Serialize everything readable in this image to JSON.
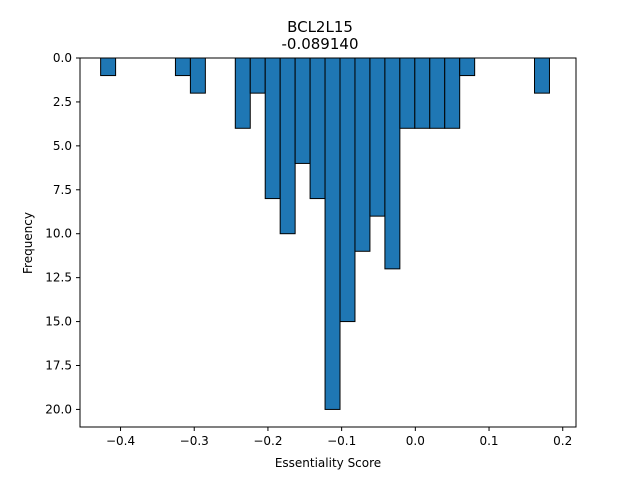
{
  "chart_data": {
    "type": "bar",
    "title": "BCL2L15",
    "subtitle": "-0.089140",
    "xlabel": "Essentiality Score",
    "ylabel": "Frequency",
    "xlim": [
      -0.455,
      0.218
    ],
    "ylim": [
      21.0,
      0.0
    ],
    "y_inverted": true,
    "bar_color": "#1f77b4",
    "edge_color": "#000000",
    "bin_width": 0.0203,
    "bins": [
      {
        "x0": -0.427,
        "x1": -0.4067,
        "count": 1
      },
      {
        "x0": -0.3255,
        "x1": -0.3052,
        "count": 1
      },
      {
        "x0": -0.3052,
        "x1": -0.2849,
        "count": 2
      },
      {
        "x0": -0.2443,
        "x1": -0.224,
        "count": 4
      },
      {
        "x0": -0.224,
        "x1": -0.2037,
        "count": 2
      },
      {
        "x0": -0.2037,
        "x1": -0.1834,
        "count": 8
      },
      {
        "x0": -0.1834,
        "x1": -0.1631,
        "count": 10
      },
      {
        "x0": -0.1631,
        "x1": -0.1428,
        "count": 6
      },
      {
        "x0": -0.1428,
        "x1": -0.1225,
        "count": 8
      },
      {
        "x0": -0.1225,
        "x1": -0.1022,
        "count": 20
      },
      {
        "x0": -0.1022,
        "x1": -0.0819,
        "count": 15
      },
      {
        "x0": -0.0819,
        "x1": -0.0616,
        "count": 11
      },
      {
        "x0": -0.0616,
        "x1": -0.0413,
        "count": 9
      },
      {
        "x0": -0.0413,
        "x1": -0.021,
        "count": 12
      },
      {
        "x0": -0.021,
        "x1": -0.0007,
        "count": 4
      },
      {
        "x0": -0.0007,
        "x1": 0.0196,
        "count": 4
      },
      {
        "x0": 0.0196,
        "x1": 0.0399,
        "count": 4
      },
      {
        "x0": 0.0399,
        "x1": 0.0602,
        "count": 4
      },
      {
        "x0": 0.0602,
        "x1": 0.0805,
        "count": 1
      },
      {
        "x0": 0.1617,
        "x1": 0.182,
        "count": 2
      }
    ],
    "x_ticks": [
      {
        "value": -0.4,
        "label": "−0.4"
      },
      {
        "value": -0.3,
        "label": "−0.3"
      },
      {
        "value": -0.2,
        "label": "−0.2"
      },
      {
        "value": -0.1,
        "label": "−0.1"
      },
      {
        "value": 0.0,
        "label": "0.0"
      },
      {
        "value": 0.1,
        "label": "0.1"
      },
      {
        "value": 0.2,
        "label": "0.2"
      }
    ],
    "y_ticks": [
      {
        "value": 0.0,
        "label": "0.0"
      },
      {
        "value": 2.5,
        "label": "2.5"
      },
      {
        "value": 5.0,
        "label": "5.0"
      },
      {
        "value": 7.5,
        "label": "7.5"
      },
      {
        "value": 10.0,
        "label": "10.0"
      },
      {
        "value": 12.5,
        "label": "12.5"
      },
      {
        "value": 15.0,
        "label": "15.0"
      },
      {
        "value": 17.5,
        "label": "17.5"
      },
      {
        "value": 20.0,
        "label": "20.0"
      }
    ],
    "grid": false,
    "legend": "none"
  }
}
